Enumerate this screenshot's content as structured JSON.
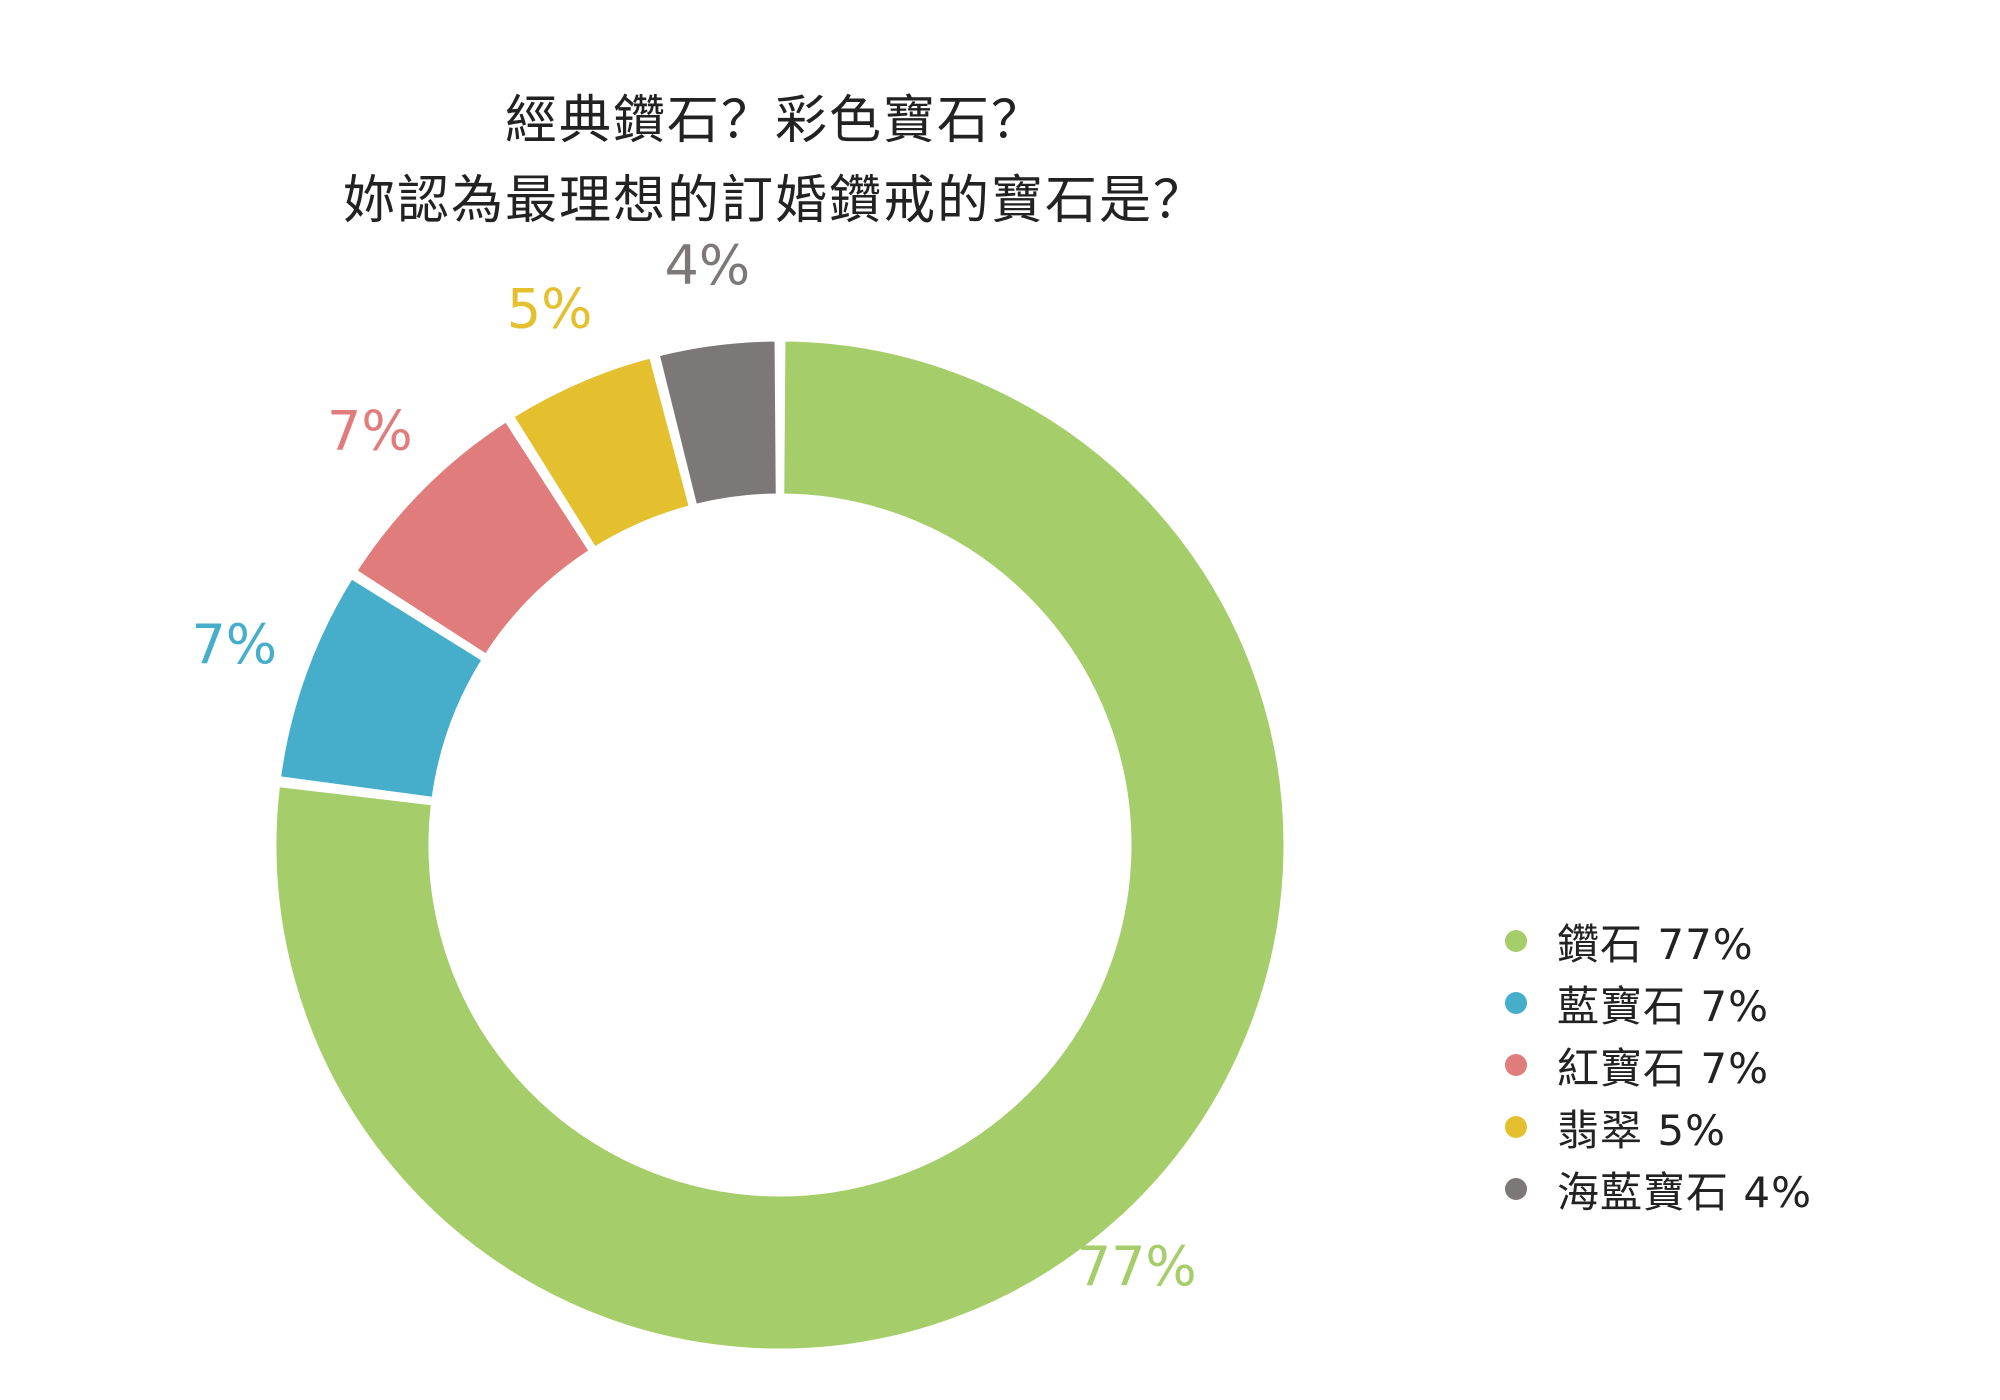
{
  "chart_data": {
    "type": "pie",
    "variant": "donut",
    "title": [
      "經典鑽石？彩色寶石？",
      "妳認為最理想的訂婚鑽戒的寶石是？"
    ],
    "slices": [
      {
        "label": "鑽石",
        "value": 77,
        "value_label": "77%",
        "legend_text": "鑽石 77%",
        "color": "#a5cd6a"
      },
      {
        "label": "藍寶石",
        "value": 7,
        "value_label": "7%",
        "legend_text": "藍寶石 7%",
        "color": "#46aecb"
      },
      {
        "label": "紅寶石",
        "value": 7,
        "value_label": "7%",
        "legend_text": "紅寶石 7%",
        "color": "#e07c7c"
      },
      {
        "label": "翡翠",
        "value": 5,
        "value_label": "5%",
        "legend_text": "翡翠 5%",
        "color": "#e4bf2e"
      },
      {
        "label": "海藍寶石",
        "value": 4,
        "value_label": "4%",
        "legend_text": "海藍寶石 4%",
        "color": "#7c7878"
      }
    ],
    "start_angle_deg": 0,
    "direction": "clockwise",
    "legend_position": "bottom-right"
  }
}
